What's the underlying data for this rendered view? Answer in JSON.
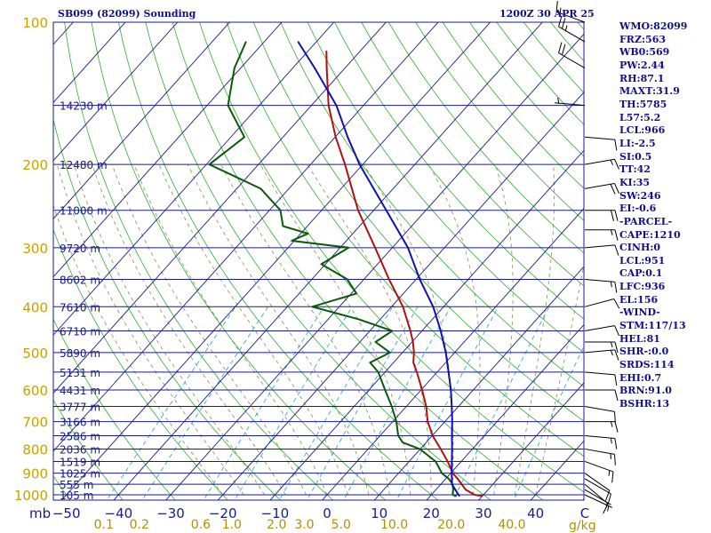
{
  "header": {
    "station": "SB099 (82099) Sounding",
    "time": "1200Z 30 APR 25"
  },
  "indices": [
    "WMO:82099",
    "FRZ:563",
    "WB0:569",
    "PW:2.44",
    "RH:87.1",
    "MAXT:31.9",
    "TH:5785",
    "L57:5.2",
    "LCL:966",
    "LI:-2.5",
    "SI:0.5",
    "TT:42",
    "KI:35",
    "SW:246",
    "EI:-0.6",
    "-PARCEL-",
    "CAPE:1210",
    "CINH:0",
    "LCL:951",
    "CAP:0.1",
    "LFC:936",
    "EL:156",
    "-WIND-",
    "STM:117/13",
    "HEL:81",
    "SHR-:0.0",
    "SRDS:114",
    "EHI:0.7",
    "BRN:91.0",
    "BSHR:13"
  ],
  "colors": {
    "isobar": "#1a1a90",
    "isotherm": "#1a1a90",
    "dry_adiabat": "#2fae2f",
    "moist_adiabat": "#8c8c50",
    "mixing_ratio": "#36a8d8",
    "temperature": "#b01010",
    "dewpoint": "#0a5a0a",
    "parcel": "#1010b0",
    "pressure_label": "#c8a000",
    "mixing_label": "#b09000"
  },
  "chart_data": {
    "type": "line",
    "title": "SB099 (82099) Sounding",
    "xlabel": "C",
    "ylabel": "mb",
    "pressure_ticks": [
      "100",
      "200",
      "300",
      "400",
      "500",
      "600",
      "700",
      "800",
      "900",
      "1000"
    ],
    "temperature_ticks": [
      "-50",
      "-40",
      "-30",
      "-20",
      "-10",
      "0",
      "10",
      "20",
      "30",
      "40"
    ],
    "mixing_ratio_ticks": [
      "0.1",
      "0.2",
      "0.6",
      "1.0",
      "2.0",
      "3.0",
      "5.0",
      "10.0",
      "20.0",
      "40.0"
    ],
    "mixing_unit": "g/kg",
    "height_labels": [
      {
        "p": 150,
        "label": "14230 m"
      },
      {
        "p": 200,
        "label": "12480 m"
      },
      {
        "p": 250,
        "label": "11000 m"
      },
      {
        "p": 300,
        "label": "9720 m"
      },
      {
        "p": 350,
        "label": "8602 m"
      },
      {
        "p": 400,
        "label": "7610 m"
      },
      {
        "p": 450,
        "label": "6710 m"
      },
      {
        "p": 500,
        "label": "5890 m"
      },
      {
        "p": 550,
        "label": "5131 m"
      },
      {
        "p": 600,
        "label": "4431 m"
      },
      {
        "p": 650,
        "label": "3777 m"
      },
      {
        "p": 700,
        "label": "3166 m"
      },
      {
        "p": 750,
        "label": "2586 m"
      },
      {
        "p": 800,
        "label": "2036 m"
      },
      {
        "p": 850,
        "label": "1519 m"
      },
      {
        "p": 900,
        "label": "1025 m"
      },
      {
        "p": 950,
        "label": "555 m"
      },
      {
        "p": 1000,
        "label": "105 m"
      }
    ],
    "series": [
      {
        "values": [
          [
            1006,
            30.0
          ],
          [
            1000,
            28.3
          ],
          [
            975,
            25.7
          ],
          [
            950,
            24.0
          ],
          [
            925,
            22.3
          ],
          [
            900,
            20.4
          ],
          [
            850,
            17.4
          ],
          [
            800,
            13.9
          ],
          [
            750,
            10.1
          ],
          [
            700,
            6.7
          ],
          [
            650,
            3.8
          ],
          [
            600,
            0.2
          ],
          [
            550,
            -3.9
          ],
          [
            525,
            -6.2
          ],
          [
            500,
            -7.8
          ],
          [
            475,
            -9.8
          ],
          [
            450,
            -12.2
          ],
          [
            400,
            -17.8
          ],
          [
            350,
            -25.2
          ],
          [
            300,
            -33.3
          ],
          [
            250,
            -43.0
          ],
          [
            200,
            -53.4
          ],
          [
            175,
            -59.9
          ],
          [
            150,
            -66.7
          ],
          [
            125,
            -73.5
          ],
          [
            115,
            -76.5
          ]
        ]
      },
      {
        "values": [
          [
            1006,
            25.0
          ],
          [
            1000,
            24.1
          ],
          [
            975,
            23.3
          ],
          [
            950,
            22.3
          ],
          [
            925,
            20.6
          ],
          [
            900,
            18.3
          ],
          [
            850,
            15.1
          ],
          [
            800,
            9.9
          ],
          [
            775,
            5.5
          ],
          [
            750,
            3.5
          ],
          [
            700,
            0.7
          ],
          [
            650,
            -2.8
          ],
          [
            600,
            -6.9
          ],
          [
            550,
            -11.3
          ],
          [
            525,
            -14.5
          ],
          [
            500,
            -12.4
          ],
          [
            475,
            -17.0
          ],
          [
            450,
            -15.7
          ],
          [
            425,
            -24.2
          ],
          [
            400,
            -35.2
          ],
          [
            375,
            -29.0
          ],
          [
            350,
            -33.2
          ],
          [
            325,
            -40.8
          ],
          [
            300,
            -38.4
          ],
          [
            290,
            -50.5
          ],
          [
            280,
            -48.6
          ],
          [
            270,
            -54.7
          ],
          [
            250,
            -57.9
          ],
          [
            225,
            -65.4
          ],
          [
            200,
            -79.4
          ],
          [
            175,
            -77.4
          ],
          [
            150,
            -86.0
          ],
          [
            125,
            -91.2
          ],
          [
            110,
            -93.5
          ]
        ]
      },
      {
        "values": [
          [
            1006,
            25.6
          ],
          [
            951,
            22.2
          ],
          [
            900,
            20.2
          ],
          [
            850,
            18.2
          ],
          [
            800,
            16.1
          ],
          [
            750,
            13.8
          ],
          [
            700,
            11.4
          ],
          [
            650,
            8.7
          ],
          [
            600,
            5.7
          ],
          [
            550,
            2.2
          ],
          [
            500,
            -1.7
          ],
          [
            450,
            -6.4
          ],
          [
            400,
            -12.0
          ],
          [
            350,
            -19.3
          ],
          [
            300,
            -27.0
          ],
          [
            250,
            -37.6
          ],
          [
            200,
            -50.6
          ],
          [
            175,
            -57.6
          ],
          [
            150,
            -65.2
          ],
          [
            125,
            -75.8
          ],
          [
            110,
            -83.5
          ]
        ]
      }
    ],
    "wind_barbs": [
      {
        "p": 1000,
        "dir": 115,
        "spd": 5
      },
      {
        "p": 975,
        "dir": 120,
        "spd": 5
      },
      {
        "p": 950,
        "dir": 130,
        "spd": 10
      },
      {
        "p": 925,
        "dir": 120,
        "spd": 10
      },
      {
        "p": 900,
        "dir": 125,
        "spd": 10
      },
      {
        "p": 850,
        "dir": 110,
        "spd": 15
      },
      {
        "p": 800,
        "dir": 100,
        "spd": 15
      },
      {
        "p": 750,
        "dir": 95,
        "spd": 15
      },
      {
        "p": 700,
        "dir": 90,
        "spd": 15
      },
      {
        "p": 650,
        "dir": 100,
        "spd": 10
      },
      {
        "p": 600,
        "dir": 90,
        "spd": 10
      },
      {
        "p": 550,
        "dir": 95,
        "spd": 10
      },
      {
        "p": 500,
        "dir": 85,
        "spd": 15
      },
      {
        "p": 475,
        "dir": 90,
        "spd": 15
      },
      {
        "p": 450,
        "dir": 80,
        "spd": 10
      },
      {
        "p": 400,
        "dir": 75,
        "spd": 10
      },
      {
        "p": 350,
        "dir": 95,
        "spd": 15
      },
      {
        "p": 300,
        "dir": 85,
        "spd": 10
      },
      {
        "p": 275,
        "dir": 90,
        "spd": 15
      },
      {
        "p": 250,
        "dir": 90,
        "spd": 20
      },
      {
        "p": 225,
        "dir": 80,
        "spd": 20
      },
      {
        "p": 200,
        "dir": 80,
        "spd": 15
      },
      {
        "p": 175,
        "dir": 95,
        "spd": 10
      },
      {
        "p": 150,
        "dir": 275,
        "spd": 5
      },
      {
        "p": 125,
        "dir": 300,
        "spd": 20
      },
      {
        "p": 110,
        "dir": 300,
        "spd": 25
      },
      {
        "p": 100,
        "dir": 290,
        "spd": 15
      }
    ]
  }
}
